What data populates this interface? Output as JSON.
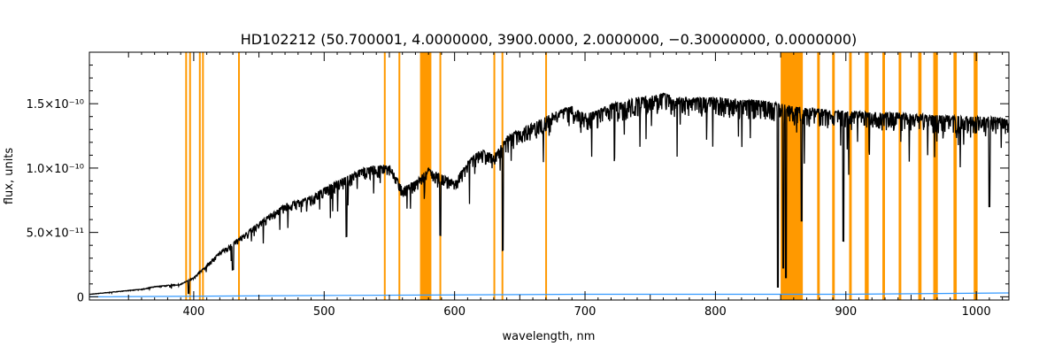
{
  "chart_data": {
    "type": "line",
    "title": "HD102212   (50.700001, 4.0000000, 3900.0000, 2.0000000, −0.30000000, 0.0000000)",
    "xlabel": "wavelength, nm",
    "ylabel": "flux, units",
    "xlim": [
      320,
      1025
    ],
    "ylim": [
      -2.5e-12,
      1.9e-10
    ],
    "x_ticks": [
      {
        "value": 400,
        "label": "400"
      },
      {
        "value": 500,
        "label": "500"
      },
      {
        "value": 600,
        "label": "600"
      },
      {
        "value": 700,
        "label": "700"
      },
      {
        "value": 800,
        "label": "800"
      },
      {
        "value": 900,
        "label": "900"
      },
      {
        "value": 1000,
        "label": "1000"
      }
    ],
    "y_ticks": [
      {
        "value": 0,
        "label": "0"
      },
      {
        "value": 5e-11,
        "label": "5.0×10⁻¹¹"
      },
      {
        "value": 1e-10,
        "label": "1.0×10⁻¹⁰"
      },
      {
        "value": 1.5e-10,
        "label": "1.5×10⁻¹⁰"
      }
    ],
    "series": [
      {
        "color": "#000000",
        "x": [
          320,
          330,
          340,
          350,
          360,
          370,
          380,
          390,
          400,
          410,
          420,
          430,
          440,
          450,
          460,
          470,
          480,
          490,
          500,
          510,
          520,
          530,
          540,
          550,
          560,
          570,
          580,
          590,
          600,
          610,
          620,
          630,
          640,
          650,
          660,
          670,
          680,
          690,
          700,
          710,
          720,
          730,
          740,
          750,
          760,
          770,
          780,
          790,
          800,
          810,
          820,
          830,
          840,
          850,
          860,
          870,
          880,
          890,
          900,
          910,
          920,
          930,
          940,
          950,
          960,
          970,
          980,
          990,
          1000,
          1010,
          1025
        ],
        "y": [
          2e-12,
          3e-12,
          4e-12,
          5e-12,
          6e-12,
          8e-12,
          9e-12,
          1e-11,
          1.5e-11,
          2.5e-11,
          3.5e-11,
          4.2e-11,
          5e-11,
          5.8e-11,
          6.5e-11,
          7.2e-11,
          7.5e-11,
          7.8e-11,
          8.5e-11,
          9e-11,
          9.5e-11,
          1e-10,
          1.02e-10,
          1.03e-10,
          8.5e-11,
          9e-11,
          1e-10,
          9.5e-11,
          9e-11,
          1.05e-10,
          1.15e-10,
          1.1e-10,
          1.25e-10,
          1.3e-10,
          1.35e-10,
          1.4e-10,
          1.45e-10,
          1.48e-10,
          1.42e-10,
          1.45e-10,
          1.5e-10,
          1.52e-10,
          1.55e-10,
          1.56e-10,
          1.58e-10,
          1.55e-10,
          1.54e-10,
          1.55e-10,
          1.55e-10,
          1.54e-10,
          1.53e-10,
          1.53e-10,
          1.52e-10,
          1.5e-10,
          1.48e-10,
          1.47e-10,
          1.46e-10,
          1.45e-10,
          1.44e-10,
          1.44e-10,
          1.43e-10,
          1.43e-10,
          1.43e-10,
          1.42e-10,
          1.42e-10,
          1.41e-10,
          1.41e-10,
          1.4e-10,
          1.4e-10,
          1.4e-10,
          1.4e-10
        ],
        "noise": 0.1,
        "absorption_lines": [
          {
            "x": 396,
            "depth": 0.8
          },
          {
            "x": 430,
            "depth": 0.5
          },
          {
            "x": 517,
            "depth": 0.5
          },
          {
            "x": 589,
            "depth": 0.5
          },
          {
            "x": 637,
            "depth": 0.7
          },
          {
            "x": 848,
            "depth": 0.95
          },
          {
            "x": 852,
            "depth": 0.85
          },
          {
            "x": 854,
            "depth": 0.9
          },
          {
            "x": 866,
            "depth": 0.6
          },
          {
            "x": 898,
            "depth": 0.7
          },
          {
            "x": 1010,
            "depth": 0.5
          }
        ]
      },
      {
        "color": "#3399ff",
        "x": [
          320,
          500,
          700,
          800,
          900,
          1025
        ],
        "y": [
          0,
          1e-12,
          2e-12,
          2e-12,
          2e-12,
          3e-12
        ]
      }
    ],
    "highlight_color": "#ff9900",
    "highlight_bands": [
      [
        393.5,
        394.8
      ],
      [
        396.5,
        397.8
      ],
      [
        404.0,
        405.3
      ],
      [
        406.4,
        407.7
      ],
      [
        434.0,
        435.3
      ],
      [
        545.8,
        547.1
      ],
      [
        557.0,
        558.3
      ],
      [
        573.5,
        582.2
      ],
      [
        588.4,
        589.7
      ],
      [
        629.8,
        631.1
      ],
      [
        636.0,
        637.3
      ],
      [
        669.5,
        670.8
      ],
      [
        850.0,
        867.0
      ],
      [
        878.0,
        880.0
      ],
      [
        889.5,
        891.5
      ],
      [
        902.5,
        904.5
      ],
      [
        914.5,
        917.5
      ],
      [
        928.0,
        930.0
      ],
      [
        940.5,
        942.5
      ],
      [
        955.5,
        958.0
      ],
      [
        967.0,
        970.5
      ],
      [
        982.5,
        985.0
      ],
      [
        998.0,
        1001.0
      ]
    ]
  }
}
